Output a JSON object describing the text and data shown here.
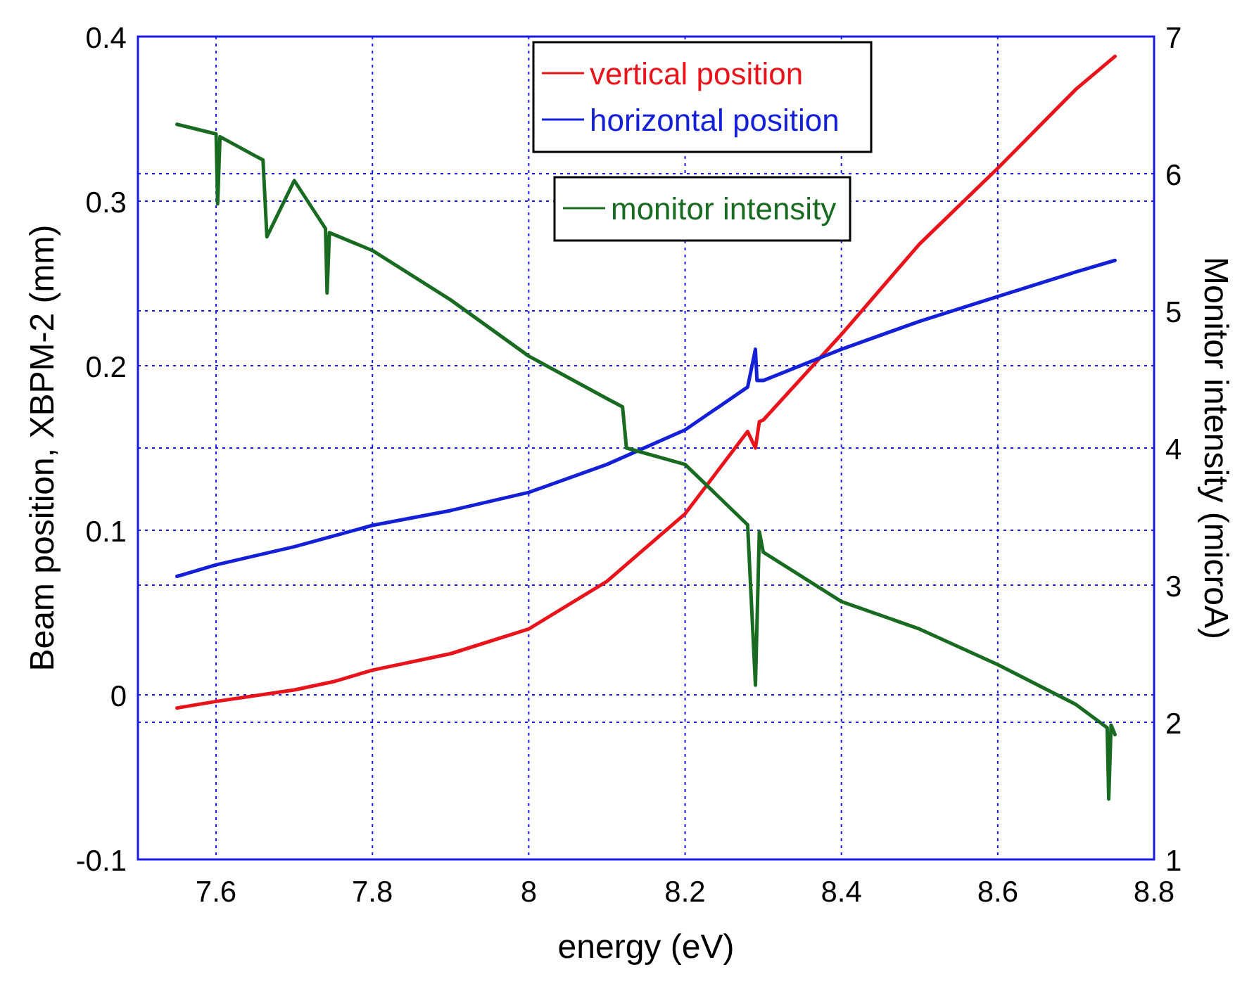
{
  "chart_data": {
    "type": "line",
    "xlabel": "energy (eV)",
    "ylabel": "Beam position, XBPM-2 (mm)",
    "y2label": "Monitor intensity (microA)",
    "xlim": [
      7.5,
      8.8
    ],
    "xticks": [
      7.6,
      7.8,
      8,
      8.2,
      8.4,
      8.6,
      8.8
    ],
    "ylim": [
      -0.1,
      0.4
    ],
    "yticks": [
      -0.1,
      0,
      0.1,
      0.2,
      0.3,
      0.4
    ],
    "y2lim": [
      1,
      7
    ],
    "y2ticks": [
      1,
      2,
      3,
      4,
      5,
      6,
      7
    ],
    "grid": true,
    "legend": "top",
    "line_style": "solid",
    "series": [
      {
        "name": "vertical position",
        "color": "#e8131b",
        "x": [
          7.55,
          7.6,
          7.7,
          7.75,
          7.8,
          7.9,
          8.0,
          8.1,
          8.2,
          8.28,
          8.29,
          8.295,
          8.3,
          8.4,
          8.5,
          8.6,
          8.7,
          8.75
        ],
        "values": [
          -0.008,
          -0.004,
          0.003,
          0.008,
          0.015,
          0.025,
          0.04,
          0.069,
          0.11,
          0.16,
          0.15,
          0.166,
          0.167,
          0.219,
          0.274,
          0.32,
          0.368,
          0.388
        ]
      },
      {
        "name": "horizontal position",
        "color": "#1420d8",
        "x": [
          7.55,
          7.6,
          7.7,
          7.8,
          7.9,
          8.0,
          8.1,
          8.2,
          8.28,
          8.29,
          8.292,
          8.3,
          8.4,
          8.5,
          8.6,
          8.7,
          8.75
        ],
        "values": [
          0.072,
          0.079,
          0.09,
          0.103,
          0.112,
          0.123,
          0.14,
          0.161,
          0.187,
          0.21,
          0.191,
          0.191,
          0.21,
          0.227,
          0.242,
          0.257,
          0.264
        ]
      },
      {
        "name": "monitor intensity",
        "color": "#1a6b22",
        "axis": "y2",
        "x": [
          7.55,
          7.6,
          7.602,
          7.605,
          7.65,
          7.66,
          7.665,
          7.7,
          7.74,
          7.742,
          7.745,
          7.8,
          7.9,
          8.0,
          8.1,
          8.12,
          8.125,
          8.2,
          8.28,
          8.29,
          8.295,
          8.3,
          8.4,
          8.5,
          8.6,
          8.7,
          8.74,
          8.742,
          8.745,
          8.75
        ],
        "values": [
          6.36,
          6.29,
          5.78,
          6.27,
          6.13,
          6.1,
          5.54,
          5.95,
          5.6,
          5.13,
          5.57,
          5.44,
          5.08,
          4.67,
          4.36,
          4.3,
          4.0,
          3.88,
          3.44,
          2.27,
          3.39,
          3.24,
          2.88,
          2.68,
          2.42,
          2.13,
          1.96,
          1.44,
          1.98,
          1.91
        ]
      }
    ]
  }
}
